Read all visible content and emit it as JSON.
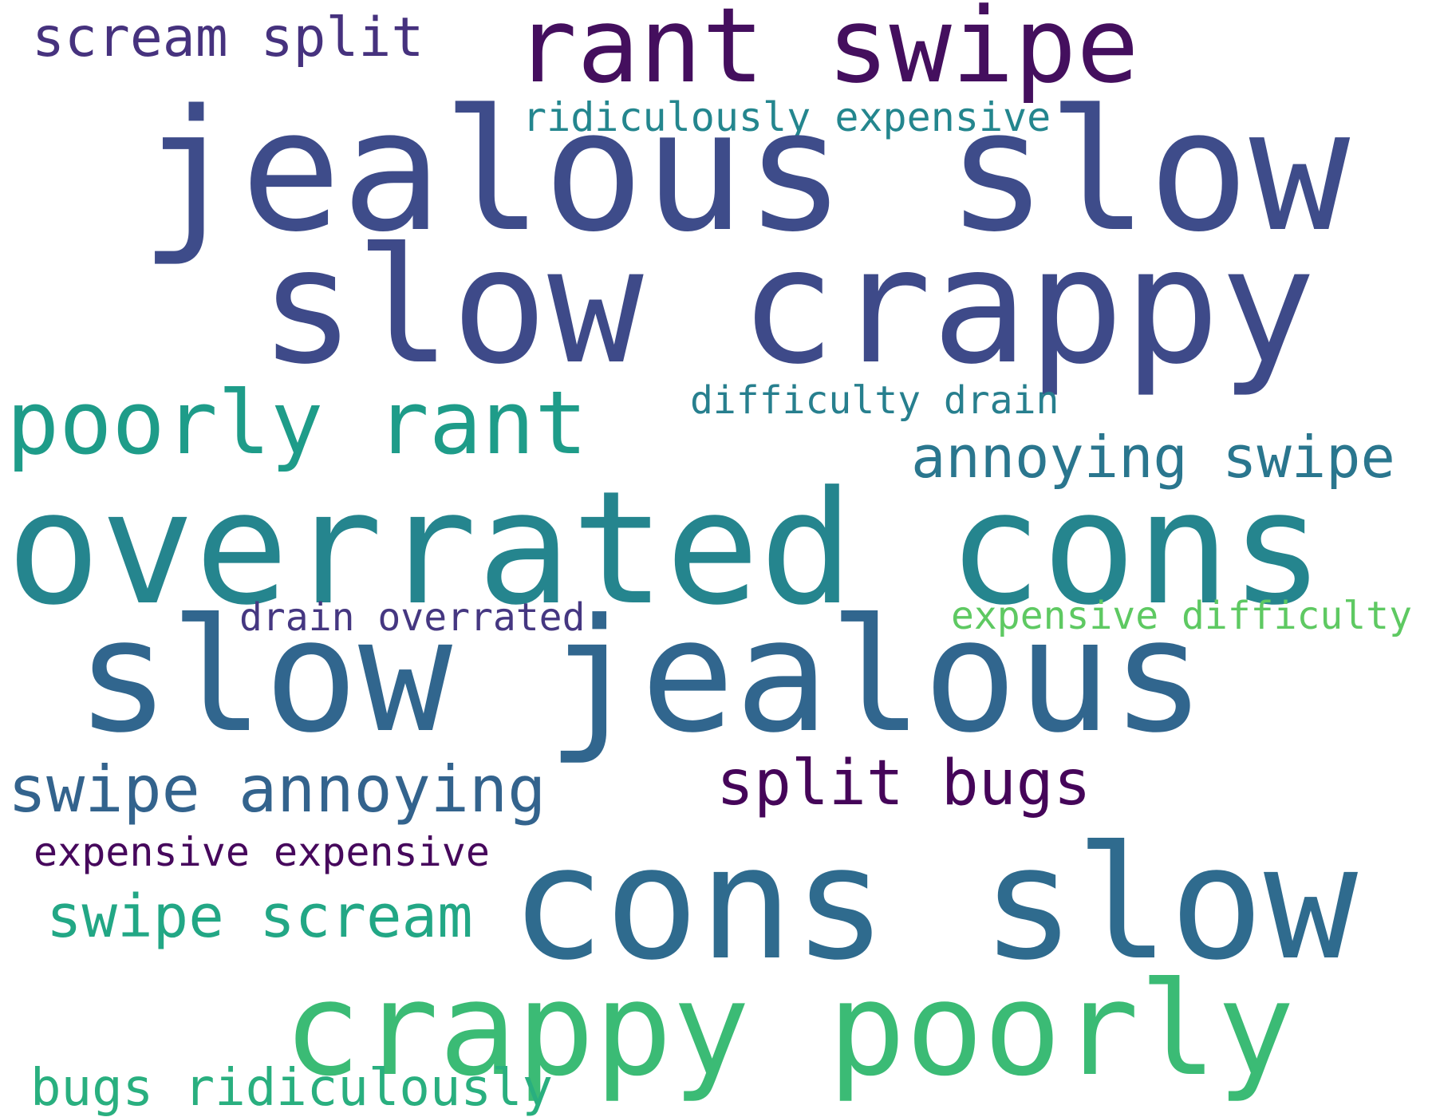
{
  "words": [
    {
      "text": "scream split",
      "color": "#46327e"
    },
    {
      "text": "rant swipe",
      "color": "#440f5e"
    },
    {
      "text": "ridiculously expensive",
      "color": "#24868e"
    },
    {
      "text": "jealous slow",
      "color": "#3e4c8a"
    },
    {
      "text": "slow crappy",
      "color": "#3e4a89"
    },
    {
      "text": "poorly rant",
      "color": "#1e9c89"
    },
    {
      "text": "difficulty drain",
      "color": "#277f8e"
    },
    {
      "text": "annoying swipe",
      "color": "#2a768e"
    },
    {
      "text": "overrated cons",
      "color": "#25858e"
    },
    {
      "text": "drain overrated",
      "color": "#453781"
    },
    {
      "text": "expensive difficulty",
      "color": "#5ec962"
    },
    {
      "text": "slow jealous",
      "color": "#31668e"
    },
    {
      "text": "swipe annoying",
      "color": "#33638d"
    },
    {
      "text": "split bugs",
      "color": "#450559"
    },
    {
      "text": "expensive expensive",
      "color": "#46085c"
    },
    {
      "text": "cons slow",
      "color": "#2f6b8e"
    },
    {
      "text": "swipe scream",
      "color": "#22a785"
    },
    {
      "text": "crappy poorly",
      "color": "#3bbb75"
    },
    {
      "text": "bugs ridiculously",
      "color": "#29af7f"
    }
  ]
}
